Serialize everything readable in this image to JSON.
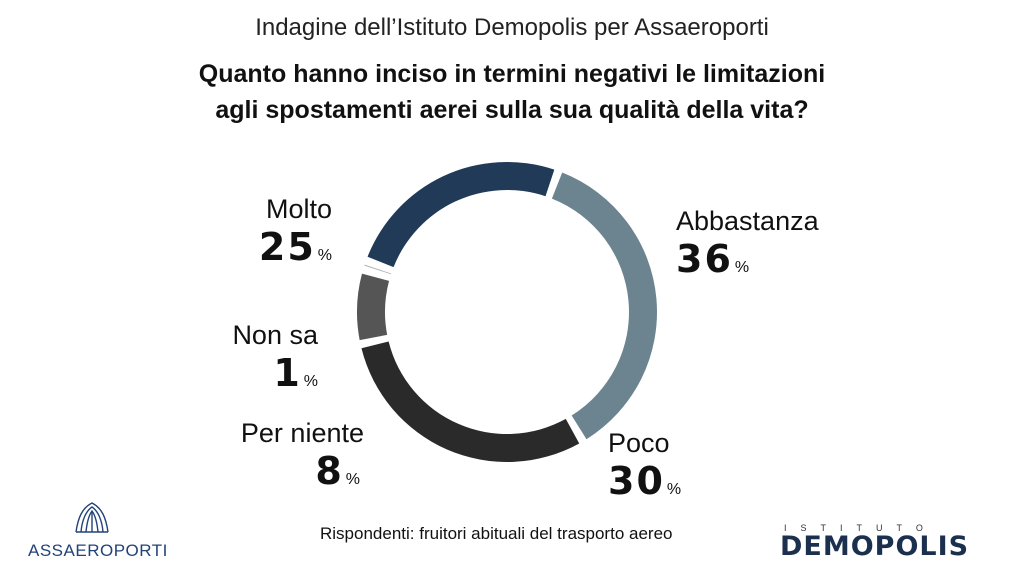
{
  "header": {
    "survey_title": "Indagine dell’Istituto Demopolis per Assaeroporti",
    "question_line1": "Quanto hanno inciso in termini negativi le limitazioni",
    "question_line2": "agli spostamenti aerei sulla sua qualità della vita?"
  },
  "chart_data": {
    "type": "pie",
    "variant": "donut",
    "unit": "%",
    "slices": [
      {
        "label": "Abbastanza",
        "value": 36,
        "color": "#6c8490"
      },
      {
        "label": "Poco",
        "value": 30,
        "color": "#2a2a2a"
      },
      {
        "label": "Per niente",
        "value": 8,
        "color": "#555555"
      },
      {
        "label": "Non sa",
        "value": 1,
        "color": "#b2b2b2"
      },
      {
        "label": "Molto",
        "value": 25,
        "color": "#213a57"
      }
    ]
  },
  "footer": {
    "note": "Rispondenti: fruitori abituali del trasporto aereo",
    "logo_left": "ASSAEROPORTI",
    "logo_right_small": "ISTITUTO",
    "logo_right_big": "DEMOPOLIS"
  }
}
